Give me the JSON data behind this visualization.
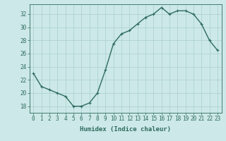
{
  "x": [
    0,
    1,
    2,
    3,
    4,
    5,
    6,
    7,
    8,
    9,
    10,
    11,
    12,
    13,
    14,
    15,
    16,
    17,
    18,
    19,
    20,
    21,
    22,
    23
  ],
  "y": [
    23,
    21,
    20.5,
    20,
    19.5,
    18,
    18,
    18.5,
    20,
    23.5,
    27.5,
    29,
    29.5,
    30.5,
    31.5,
    32,
    33,
    32,
    32.5,
    32.5,
    32,
    30.5,
    28,
    26.5
  ],
  "line_color": "#2e6b5e",
  "marker_color": "#2e6b5e",
  "bg_color": "#cce8e8",
  "grid_color": "#aacfcf",
  "xlabel": "Humidex (Indice chaleur)",
  "xlim": [
    -0.5,
    23.5
  ],
  "ylim": [
    17.0,
    33.5
  ],
  "yticks": [
    18,
    20,
    22,
    24,
    26,
    28,
    30,
    32
  ],
  "xticks": [
    0,
    1,
    2,
    3,
    4,
    5,
    6,
    7,
    8,
    9,
    10,
    11,
    12,
    13,
    14,
    15,
    16,
    17,
    18,
    19,
    20,
    21,
    22,
    23
  ],
  "tick_fontsize": 5.5,
  "label_fontsize": 6.5,
  "line_width": 1.0,
  "marker_size": 2.5
}
